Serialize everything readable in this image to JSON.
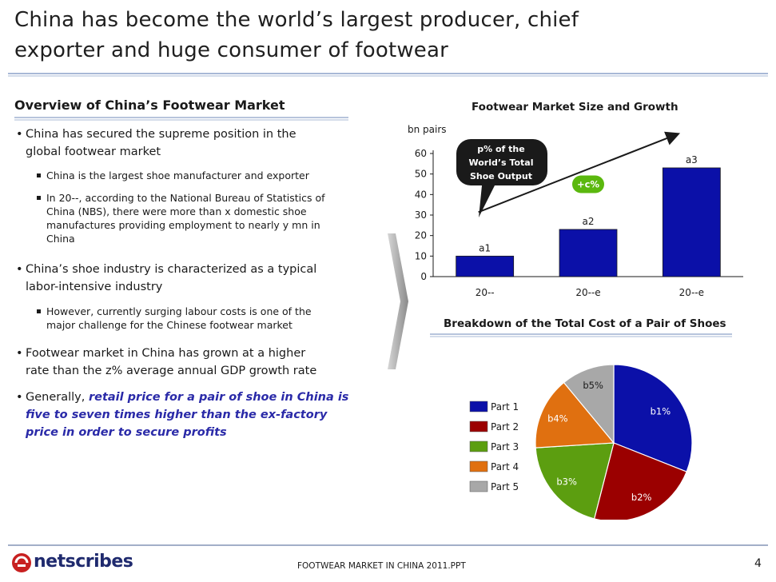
{
  "slide": {
    "title_line1": "China has become the world’s largest producer, chief",
    "title_line2": "exporter and huge consumer of footwear"
  },
  "left": {
    "heading": "Overview of China’s Footwear Market",
    "bullets": [
      {
        "line1": "China has secured the supreme position in the",
        "line2": "global footwear market"
      },
      {
        "line1": "China’s shoe industry is characterized as a typical",
        "line2": "labor-intensive industry"
      },
      {
        "line1": "Footwear market in China has grown at a higher",
        "line2": "rate than the z% average annual GDP growth rate"
      }
    ],
    "sub_bullets": [
      {
        "line1": "China is the largest shoe manufacturer and exporter"
      },
      {
        "line1": "In 20--, according to the National Bureau of Statistics of",
        "line2": "China (NBS), there were more than x domestic shoe",
        "line3": "manufactures providing employment to nearly y mn in",
        "line4": "China"
      },
      {
        "line1": "However, currently surging labour costs is one of the",
        "line2": "major challenge for the Chinese footwear market"
      }
    ],
    "last_bullet": {
      "prefix": "Generally, ",
      "emph1": "retail price for a pair of shoe in China is",
      "emph2": "five to seven times higher than the ex-factory",
      "emph3": "price in order to secure profits"
    }
  },
  "chart_data": [
    {
      "type": "bar",
      "title": "Footwear Market Size and Growth",
      "ylabel": "bn pairs",
      "categories": [
        "20--",
        "20--e",
        "20--e"
      ],
      "values": [
        10,
        23,
        53
      ],
      "data_labels": [
        "a1",
        "a2",
        "a3"
      ],
      "ylim": [
        0,
        60
      ],
      "yticks": [
        "0",
        "10",
        "20",
        "30",
        "40",
        "50",
        "60"
      ],
      "callout": {
        "line1": "p% of the",
        "line2": "World’s Total",
        "line3": "Shoe Output"
      },
      "growth_badge": "+c%",
      "bar_color": "#0b10a8",
      "grid": false
    },
    {
      "type": "pie",
      "title": "Breakdown of the Total Cost of a Pair of Shoes",
      "categories": [
        "Part 1",
        "Part 2",
        "Part 3",
        "Part 4",
        "Part 5"
      ],
      "values": [
        31,
        23,
        20,
        15,
        11
      ],
      "data_labels": [
        "b1%",
        "b2%",
        "b3%",
        "b4%",
        "b5%"
      ],
      "colors": [
        "#0b10a8",
        "#9b0000",
        "#5c9e10",
        "#e07010",
        "#a8a8a8"
      ],
      "legend": "left"
    }
  ],
  "footer": {
    "brand": "netscribes",
    "text": "FOOTWEAR MARKET IN CHINA 2011.PPT",
    "page": "4"
  }
}
